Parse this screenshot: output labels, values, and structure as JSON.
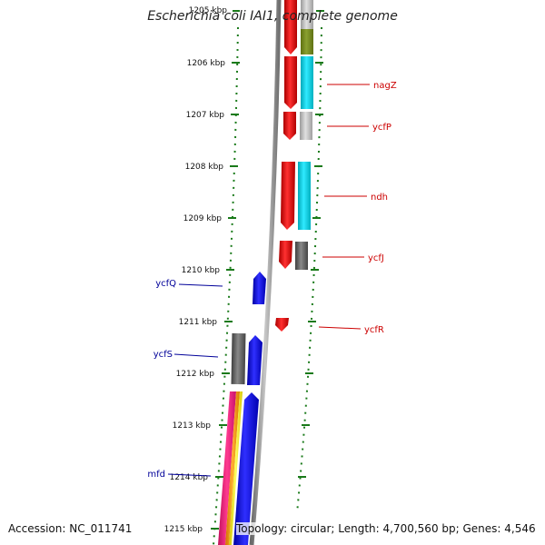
{
  "title": "Escherichia coli IAI1, complete genome",
  "accession": "Accession: NC_011741",
  "summary": "Topology: circular; Length: 4,700,560 bp; Genes: 4,546",
  "ticks": [
    "1205 kbp",
    "1206 kbp",
    "1207 kbp",
    "1208 kbp",
    "1209 kbp",
    "1210 kbp",
    "1211 kbp",
    "1212 kbp",
    "1213 kbp",
    "1214 kbp",
    "1215 kbp"
  ],
  "gene_labels": {
    "forward": [
      "nagZ",
      "ycfP",
      "ndh",
      "ycfJ",
      "ycfR"
    ],
    "reverse": [
      "ycfQ",
      "ycfS",
      "mfd"
    ]
  },
  "colors": {
    "forward_label": "#cc0000",
    "reverse_label": "#000099",
    "tick": "#1a7a1a",
    "backbone": "#8a8a8a",
    "forward_cds": "#ee0000",
    "reverse_cds": "#0000ee"
  }
}
